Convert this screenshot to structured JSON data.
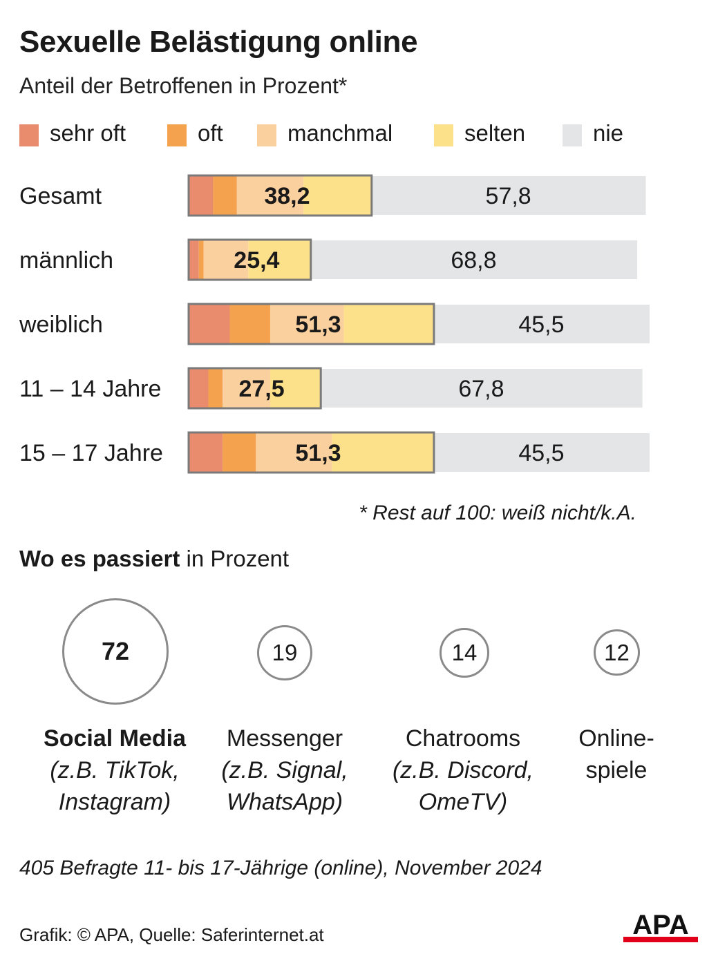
{
  "title": "Sexuelle Belästigung online",
  "subtitle": "Anteil der Betroffenen in Prozent*",
  "legend": [
    {
      "label": "sehr oft",
      "color": "#e98c6d"
    },
    {
      "label": "oft",
      "color": "#f4a24e"
    },
    {
      "label": "manchmal",
      "color": "#fbd09f"
    },
    {
      "label": "selten",
      "color": "#fde08a"
    },
    {
      "label": "nie",
      "color": "#e4e5e6"
    }
  ],
  "chart_data": {
    "type": "bar",
    "orientation": "horizontal",
    "stacked": true,
    "title": "Sexuelle Belästigung online",
    "subtitle": "Anteil der Betroffenen in Prozent*",
    "categories": [
      "Gesamt",
      "männlich",
      "weiblich",
      "11 – 14 Jahre",
      "15 – 17 Jahre"
    ],
    "series": [
      {
        "name": "sehr oft",
        "values": [
          5,
          2,
          8.5,
          4,
          7
        ]
      },
      {
        "name": "oft",
        "values": [
          5,
          1,
          8.5,
          3,
          7
        ]
      },
      {
        "name": "manchmal",
        "values": [
          14,
          9.4,
          15.5,
          10,
          16
        ]
      },
      {
        "name": "selten",
        "values": [
          14.2,
          13,
          18.8,
          10.5,
          21.3
        ]
      },
      {
        "name": "nie",
        "values": [
          57.8,
          68.8,
          45.5,
          67.8,
          45.5
        ]
      }
    ],
    "affected_totals": [
      "38,2",
      "25,4",
      "51,3",
      "27,5",
      "51,3"
    ],
    "never_labels": [
      "57,8",
      "68,8",
      "45,5",
      "67,8",
      "45,5"
    ],
    "xlim": [
      0,
      100
    ]
  },
  "footnote": "* Rest auf 100: weiß nicht/k.A.",
  "platforms": {
    "title_bold": "Wo es passiert",
    "title_rest": " in Prozent",
    "items": [
      {
        "value": "72",
        "name": "Social Media",
        "examples": [
          "(z.B. TikTok,",
          "Instagram)"
        ]
      },
      {
        "value": "19",
        "name": "Messenger",
        "examples": [
          "(z.B. Signal,",
          "WhatsApp)"
        ]
      },
      {
        "value": "14",
        "name": "Chatrooms",
        "examples": [
          "(z.B. Discord,",
          "OmeTV)"
        ]
      },
      {
        "value": "12",
        "name": "Online-",
        "examples": [
          "spiele"
        ]
      }
    ]
  },
  "sample_note": "405 Befragte 11- bis 17-Jährige (online), November 2024",
  "source": "Grafik: © APA, Quelle: Saferinternet.at",
  "logo": {
    "text": "APA",
    "accent": "#e2001a"
  }
}
